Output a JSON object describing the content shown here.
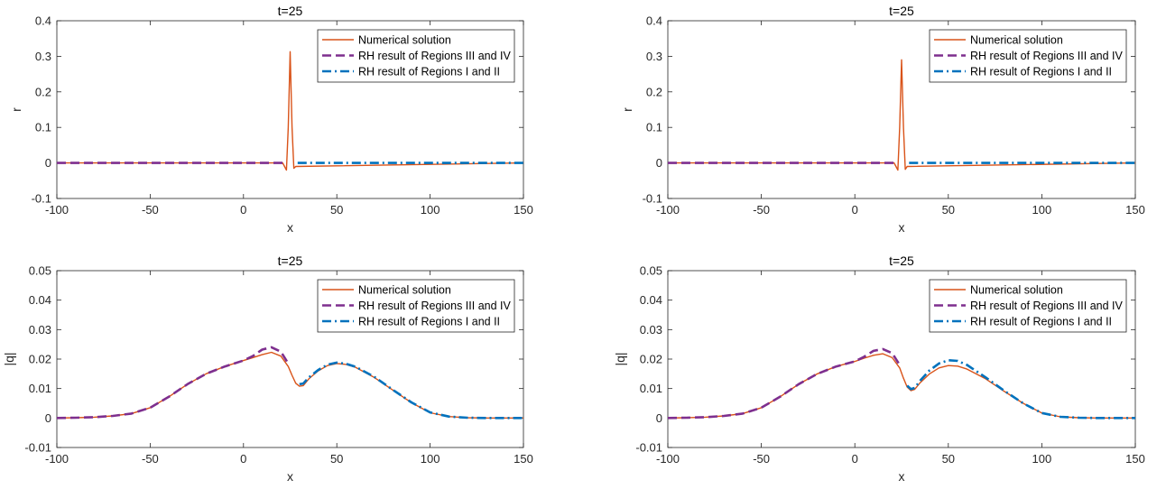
{
  "colors": {
    "numerical": "#D95319",
    "rh_iii_iv": "#7E2F8E",
    "rh_i_ii": "#0072BD",
    "axis": "#262626",
    "legend_border": "#262626"
  },
  "chart_data": [
    {
      "type": "line",
      "title": "t=25",
      "xlabel": "x",
      "ylabel": "r",
      "xlim": [
        -100,
        150
      ],
      "ylim": [
        -0.1,
        0.4
      ],
      "xticks": [
        "-100",
        "-50",
        "0",
        "50",
        "100",
        "150"
      ],
      "yticks": [
        "-0.1",
        "0",
        "0.1",
        "0.2",
        "0.3",
        "0.4"
      ],
      "legend": "top-right",
      "grid": false,
      "series": [
        {
          "name": "Numerical solution",
          "style": "solid",
          "x": [
            -100,
            21,
            22,
            23,
            24,
            25,
            26,
            27,
            28,
            150
          ],
          "y": [
            0,
            0,
            -0.01,
            -0.02,
            0.1,
            0.313,
            0.1,
            -0.015,
            -0.01,
            0
          ]
        },
        {
          "name": "RH result of Regions III and IV",
          "style": "dashed",
          "x": [
            -100,
            21
          ],
          "y": [
            0,
            0
          ]
        },
        {
          "name": "RH result of Regions I and II",
          "style": "dashdot",
          "x": [
            29,
            150
          ],
          "y": [
            0,
            0
          ]
        }
      ]
    },
    {
      "type": "line",
      "title": "t=25",
      "xlabel": "x",
      "ylabel": "r",
      "xlim": [
        -100,
        150
      ],
      "ylim": [
        -0.1,
        0.4
      ],
      "xticks": [
        "-100",
        "-50",
        "0",
        "50",
        "100",
        "150"
      ],
      "yticks": [
        "-0.1",
        "0",
        "0.1",
        "0.2",
        "0.3",
        "0.4"
      ],
      "legend": "top-right",
      "grid": false,
      "series": [
        {
          "name": "Numerical solution",
          "style": "solid",
          "x": [
            -100,
            21,
            22,
            23,
            24,
            25,
            26,
            27,
            28,
            150
          ],
          "y": [
            0,
            0,
            -0.01,
            -0.02,
            0.1,
            0.29,
            0.1,
            -0.018,
            -0.01,
            0
          ]
        },
        {
          "name": "RH result of Regions III and IV",
          "style": "dashed",
          "x": [
            -100,
            21
          ],
          "y": [
            0,
            0
          ]
        },
        {
          "name": "RH result of Regions I and II",
          "style": "dashdot",
          "x": [
            29,
            150
          ],
          "y": [
            0,
            0
          ]
        }
      ]
    },
    {
      "type": "line",
      "title": "t=25",
      "xlabel": "x",
      "ylabel": "|q|",
      "xlim": [
        -100,
        150
      ],
      "ylim": [
        -0.01,
        0.05
      ],
      "xticks": [
        "-100",
        "-50",
        "0",
        "50",
        "100",
        "150"
      ],
      "yticks": [
        "-0.01",
        "0",
        "0.01",
        "0.02",
        "0.03",
        "0.04",
        "0.05"
      ],
      "legend": "top-right",
      "grid": false,
      "series": [
        {
          "name": "Numerical solution",
          "style": "solid",
          "x": [
            -100,
            -90,
            -80,
            -70,
            -60,
            -50,
            -40,
            -30,
            -20,
            -10,
            0,
            5,
            10,
            15,
            20,
            24,
            26,
            28,
            30,
            32,
            35,
            40,
            45,
            50,
            55,
            60,
            70,
            80,
            90,
            100,
            110,
            120,
            130,
            140,
            150
          ],
          "y": [
            0,
            0.0001,
            0.0003,
            0.0007,
            0.0015,
            0.0035,
            0.0072,
            0.0115,
            0.015,
            0.0175,
            0.0195,
            0.0205,
            0.0215,
            0.0223,
            0.021,
            0.0175,
            0.0145,
            0.0118,
            0.0108,
            0.011,
            0.0133,
            0.016,
            0.0178,
            0.0185,
            0.0182,
            0.0172,
            0.0138,
            0.0095,
            0.0052,
            0.0018,
            0.0005,
            0.0001,
            0,
            0,
            0
          ]
        },
        {
          "name": "RH result of Regions III and IV",
          "style": "dashed",
          "x": [
            -100,
            -90,
            -80,
            -70,
            -60,
            -50,
            -40,
            -30,
            -20,
            -10,
            0,
            5,
            10,
            15,
            20,
            24
          ],
          "y": [
            0,
            0.0001,
            0.0003,
            0.0007,
            0.0015,
            0.0035,
            0.0072,
            0.0115,
            0.015,
            0.0175,
            0.0195,
            0.021,
            0.0232,
            0.024,
            0.0225,
            0.0185
          ]
        },
        {
          "name": "RH result of Regions I and II",
          "style": "dashdot",
          "x": [
            30,
            32,
            35,
            40,
            45,
            50,
            55,
            60,
            70,
            80,
            90,
            100,
            110,
            120,
            130,
            140,
            150
          ],
          "y": [
            0.0115,
            0.0117,
            0.0138,
            0.0163,
            0.0181,
            0.0188,
            0.0184,
            0.0174,
            0.014,
            0.0096,
            0.0053,
            0.0019,
            0.0005,
            0.0001,
            0,
            0,
            0
          ]
        }
      ]
    },
    {
      "type": "line",
      "title": "t=25",
      "xlabel": "x",
      "ylabel": "|q|",
      "xlim": [
        -100,
        150
      ],
      "ylim": [
        -0.01,
        0.05
      ],
      "xticks": [
        "-100",
        "-50",
        "0",
        "50",
        "100",
        "150"
      ],
      "yticks": [
        "-0.01",
        "0",
        "0.01",
        "0.02",
        "0.03",
        "0.04",
        "0.05"
      ],
      "legend": "top-right",
      "grid": false,
      "series": [
        {
          "name": "Numerical solution",
          "style": "solid",
          "x": [
            -100,
            -90,
            -80,
            -70,
            -60,
            -50,
            -40,
            -30,
            -20,
            -10,
            0,
            5,
            10,
            15,
            20,
            24,
            26,
            28,
            30,
            32,
            35,
            40,
            45,
            50,
            55,
            60,
            70,
            80,
            90,
            100,
            110,
            120,
            130,
            140,
            150
          ],
          "y": [
            0,
            0.0001,
            0.0003,
            0.0007,
            0.0015,
            0.0035,
            0.0072,
            0.0115,
            0.015,
            0.0175,
            0.0192,
            0.0203,
            0.0213,
            0.0218,
            0.0205,
            0.017,
            0.0135,
            0.0105,
            0.0093,
            0.0097,
            0.012,
            0.015,
            0.017,
            0.0178,
            0.0176,
            0.0166,
            0.0133,
            0.009,
            0.005,
            0.0017,
            0.0004,
            0.0001,
            0,
            0,
            0
          ]
        },
        {
          "name": "RH result of Regions III and IV",
          "style": "dashed",
          "x": [
            -100,
            -90,
            -80,
            -70,
            -60,
            -50,
            -40,
            -30,
            -20,
            -10,
            0,
            5,
            10,
            15,
            20,
            24
          ],
          "y": [
            0,
            0.0001,
            0.0003,
            0.0007,
            0.0015,
            0.0035,
            0.0072,
            0.0115,
            0.015,
            0.0175,
            0.0192,
            0.0208,
            0.0228,
            0.0234,
            0.022,
            0.018
          ]
        },
        {
          "name": "RH result of Regions I and II",
          "style": "dashdot",
          "x": [
            28,
            30,
            32,
            35,
            40,
            45,
            50,
            55,
            60,
            70,
            80,
            90,
            100,
            110,
            120,
            130,
            140,
            150
          ],
          "y": [
            0.011,
            0.0098,
            0.0102,
            0.0127,
            0.0162,
            0.0185,
            0.0196,
            0.0194,
            0.018,
            0.0138,
            0.0092,
            0.005,
            0.0017,
            0.0004,
            0.0001,
            0,
            0,
            0
          ]
        }
      ]
    }
  ]
}
